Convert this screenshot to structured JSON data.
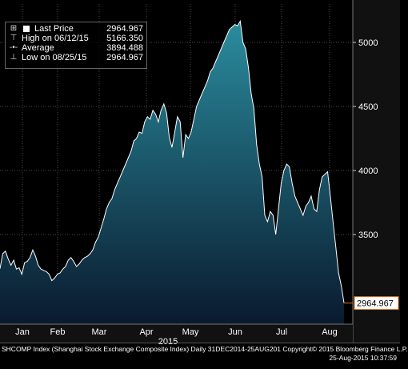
{
  "chart_data": {
    "type": "area",
    "x_labels": [
      "Jan",
      "Feb",
      "Mar",
      "Apr",
      "May",
      "Jun",
      "Jul",
      "Aug"
    ],
    "year_label": "2015",
    "ylim": [
      2800,
      5300
    ],
    "y_ticks": [
      3500,
      4000,
      4500,
      5000
    ],
    "y_tick_labels": [
      "3500",
      "4000",
      "4500",
      "5000"
    ],
    "last_price_label": "2964.967",
    "values": [
      3234,
      3350,
      3370,
      3310,
      3260,
      3300,
      3230,
      3240,
      3190,
      3280,
      3290,
      3320,
      3380,
      3330,
      3260,
      3230,
      3220,
      3210,
      3190,
      3140,
      3160,
      3190,
      3200,
      3230,
      3250,
      3300,
      3320,
      3290,
      3250,
      3270,
      3300,
      3320,
      3330,
      3350,
      3380,
      3440,
      3480,
      3550,
      3620,
      3700,
      3750,
      3780,
      3850,
      3900,
      3950,
      4000,
      4050,
      4100,
      4150,
      4230,
      4250,
      4300,
      4290,
      4380,
      4420,
      4400,
      4470,
      4440,
      4380,
      4470,
      4520,
      4450,
      4260,
      4180,
      4300,
      4420,
      4380,
      4100,
      4280,
      4250,
      4300,
      4400,
      4500,
      4550,
      4600,
      4650,
      4700,
      4770,
      4800,
      4850,
      4900,
      4950,
      5000,
      5050,
      5100,
      5120,
      5140,
      5130,
      5166,
      5000,
      4950,
      4800,
      4600,
      4480,
      4200,
      4050,
      3950,
      3650,
      3600,
      3680,
      3650,
      3500,
      3700,
      3900,
      4000,
      4050,
      4030,
      3900,
      3800,
      3750,
      3700,
      3650,
      3720,
      3750,
      3800,
      3700,
      3680,
      3850,
      3950,
      3970,
      3990,
      3800,
      3600,
      3400,
      3200,
      3100,
      2964.967
    ],
    "legend": {
      "last_price": {
        "label": "Last Price",
        "value": "2964.967"
      },
      "high": {
        "label": "High on 06/12/15",
        "value": "5166.350"
      },
      "average": {
        "label": "Average",
        "value": "3894.488"
      },
      "low": {
        "label": "Low on 08/25/15",
        "value": "2964.967"
      }
    }
  },
  "colors": {
    "background": "#000000",
    "area_top": "#2a8c9e",
    "area_bottom": "#0a1a2e",
    "line": "#ffffff",
    "grid": "#4a4a4a",
    "axis_bg": "#111111",
    "price_marker_border": "#e07020"
  },
  "footer": {
    "line1": "SHCOMP Index (Shanghai Stock Exchange Composite Index)  Daily 31DEC2014-25AUG201  Copyright© 2015 Bloomberg Finance L.P.",
    "line2": "25-Aug-2015 10:37:59"
  }
}
